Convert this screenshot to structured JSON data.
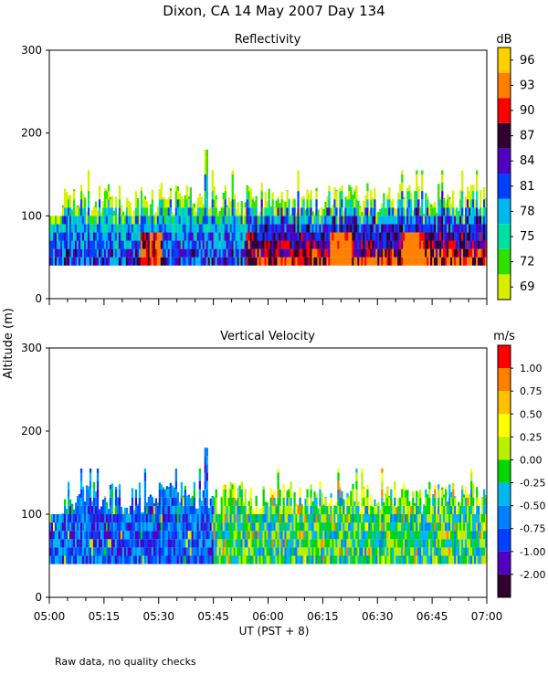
{
  "title": "Dixon, CA 14 May 2007  Day 134",
  "footnote": "Raw data, no quality checks",
  "shared": {
    "ylabel": "Altitude (m)",
    "xlabel": "UT  (PST + 8)",
    "x_ticks": [
      "05:00",
      "05:15",
      "05:30",
      "05:45",
      "06:00",
      "06:15",
      "06:30",
      "06:45",
      "07:00"
    ],
    "x_range_hours": [
      5.0,
      7.0
    ]
  },
  "chart_data": [
    {
      "type": "heatmap",
      "title": "Reflectivity",
      "unit": "dB",
      "ylim": [
        0,
        300
      ],
      "y_ticks": [
        "0",
        "100",
        "200",
        "300"
      ],
      "y_tick_values": [
        0,
        100,
        200,
        300
      ],
      "colorbar": {
        "colors": [
          "#d8f000",
          "#30e000",
          "#00e0a0",
          "#00b8f0",
          "#0040ff",
          "#5000c0",
          "#300030",
          "#ff0000",
          "#ff8000",
          "#ffd000"
        ],
        "labels": [
          "69",
          "72",
          "75",
          "78",
          "81",
          "84",
          "87",
          "90",
          "93",
          "96"
        ]
      },
      "profile": {
        "base_altitude_m": 40,
        "typical_top_m": [
          100,
          140
        ],
        "max_top_m": 180,
        "max_top_time": "05:43",
        "strong_echo_times": [
          "05:28",
          "06:20",
          "06:40"
        ]
      }
    },
    {
      "type": "heatmap",
      "title": "Vertical Velocity",
      "unit": "m/s",
      "ylim": [
        0,
        300
      ],
      "y_ticks": [
        "0",
        "100",
        "200",
        "300"
      ],
      "y_tick_values": [
        0,
        100,
        200,
        300
      ],
      "colorbar": {
        "colors": [
          "#300030",
          "#5000c0",
          "#0040ff",
          "#0080ff",
          "#00b8f0",
          "#00d800",
          "#b8f000",
          "#ffff00",
          "#ffc000",
          "#ff8000",
          "#ff0000"
        ],
        "labels": [
          "-2.00",
          "-1.00",
          "-0.75",
          "-0.50",
          "-0.25",
          "0.00",
          "0.25",
          "0.50",
          "0.75",
          "1.00"
        ]
      },
      "profile": {
        "base_altitude_m": 40,
        "typical_top_m": [
          100,
          140
        ],
        "max_top_m": 180,
        "max_top_time": "05:43"
      }
    }
  ]
}
